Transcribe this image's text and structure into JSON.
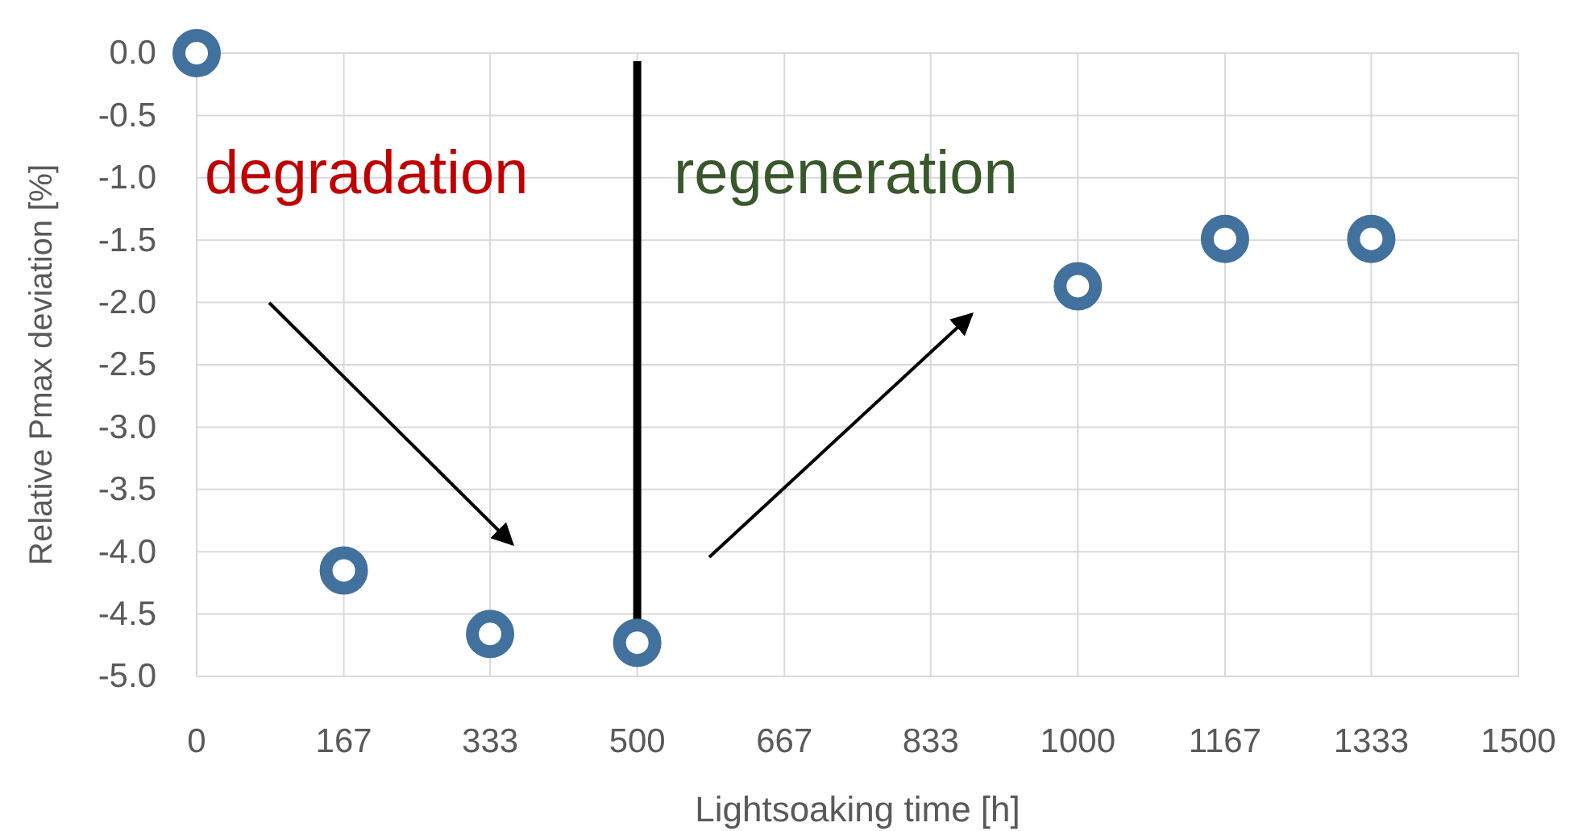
{
  "chart_data": {
    "type": "scatter",
    "xlabel": "Lightsoaking time [h]",
    "ylabel": "Relative Pmax deviation [%]",
    "x": [
      0,
      167,
      333,
      500,
      1000,
      1167,
      1333
    ],
    "series": [
      {
        "color": "#41719c",
        "values": [
          0.0,
          -4.15,
          -4.66,
          -4.73,
          -1.87,
          -1.49,
          -1.49
        ]
      }
    ],
    "xlim": [
      0,
      1500
    ],
    "xticks": [
      0,
      167,
      333,
      500,
      667,
      833,
      1000,
      1167,
      1333,
      1500
    ],
    "ylim": [
      -5,
      0
    ],
    "yticks": [
      {
        "value": 0,
        "label": "0.0"
      },
      {
        "value": -0.5,
        "label": "-0.5"
      },
      {
        "value": -1,
        "label": "-1.0"
      },
      {
        "value": -1.5,
        "label": "-1.5"
      },
      {
        "value": -2,
        "label": "-2.0"
      },
      {
        "value": -2.5,
        "label": "-2.5"
      },
      {
        "value": -3,
        "label": "-3.0"
      },
      {
        "value": -3.5,
        "label": "-3.5"
      },
      {
        "value": -4,
        "label": "-4.0"
      },
      {
        "value": -4.5,
        "label": "-4.5"
      },
      {
        "value": -5,
        "label": "-5.0"
      }
    ],
    "grid": true,
    "marker": "circle",
    "ref_lines": [
      {
        "axis": "x",
        "value": 500,
        "color": "#000000"
      }
    ],
    "annotations": [
      "degradation",
      "regeneration"
    ]
  }
}
